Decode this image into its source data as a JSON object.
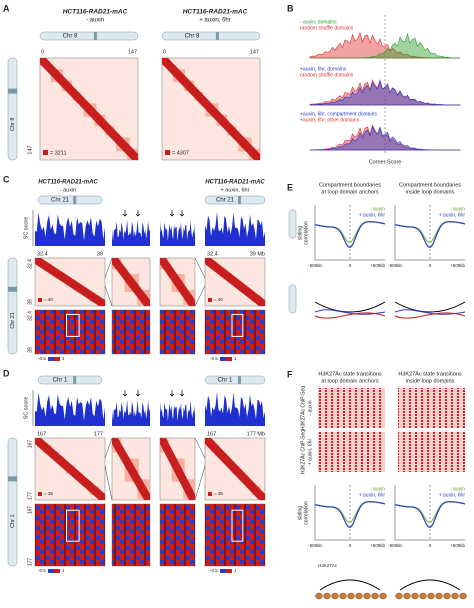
{
  "A": {
    "label": "A",
    "left_title": [
      "HCT116-RAD21-mAC",
      "- auxin"
    ],
    "right_title": [
      "HCT116-RAD21-mAC",
      "+ auxin, 6hr"
    ],
    "chromosome": "Chr 8",
    "axis_start": "0",
    "axis_end": "147",
    "left_max": "= 3211",
    "right_max": "= 4307"
  },
  "B": {
    "label": "B",
    "legends": [
      [
        "- auxin, domains",
        "random shuffle domains"
      ],
      [
        "+auxin, 6hr, domains",
        "random shuffle domains"
      ],
      [
        "+auxin, 6hr, compartment domains",
        "+auxin, 6hr, other domains"
      ]
    ],
    "x_label": "Corner Score"
  },
  "C": {
    "label": "C",
    "left_title": [
      "HCT116-RAD21-mAC",
      "- auxin"
    ],
    "right_title": [
      "HCT116-RAD21-mAC",
      "+ auxin, 6hr"
    ],
    "chromosome": "Chr 21",
    "y_label": "SC score",
    "start": "32.4",
    "end": "39",
    "end_mb": "39 Mb",
    "max": "= 40",
    "colorbar": [
      "-0.5",
      "1"
    ]
  },
  "D": {
    "label": "D",
    "chromosome": "Chr 1",
    "y_label": "SC score",
    "start": "167",
    "end": "177",
    "end_mb": "177 Mb",
    "max": "= 35",
    "colorbar": [
      "-0.5",
      "1"
    ]
  },
  "E": {
    "label": "E",
    "titles": [
      [
        "Compartment boundaries",
        "at loop domain anchors"
      ],
      [
        "Compartment boundaries",
        "inside loop domains"
      ]
    ],
    "legend": [
      "- auxin",
      "+ auxin, 6hr"
    ],
    "y_label": [
      "sliding",
      "correlation"
    ],
    "x_ticks": [
      "-500kb",
      "0",
      "+500kb"
    ]
  },
  "F": {
    "label": "F",
    "titles": [
      [
        "H3K27Ac state transitions",
        "at loop domain anchors"
      ],
      [
        "H3K27Ac state transitions",
        "inside loop domains"
      ]
    ],
    "row_labels": [
      [
        "H3K27Ac ChIP-Seq",
        "- auxin"
      ],
      [
        "H3K27Ac ChIP-Seq",
        "+ auxin, 6hr"
      ]
    ],
    "legend": [
      "- auxin",
      "+ auxin, 6hr"
    ],
    "y_label": [
      "sliding",
      "correlation"
    ],
    "x_ticks": [
      "-500kb",
      "0",
      "+500kb"
    ],
    "mark": "H3K27Ac"
  }
}
